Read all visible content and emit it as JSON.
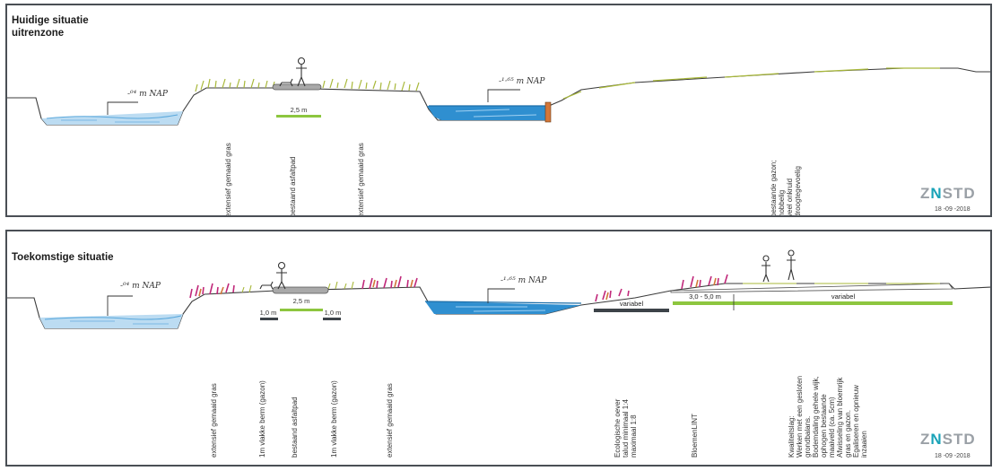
{
  "panels": {
    "current": {
      "title_line1": "Huidige situatie",
      "title_line2": "uitrenzone",
      "level_left": "-⁰⁴ m NAP",
      "level_right": "-¹·⁶⁵ m NAP",
      "path_width": "2,5 m",
      "labels": {
        "grass_left": "extensief gemaaid gras",
        "path": "bestaand asfaltpad",
        "grass_right": "extensief gemaaid gras",
        "lawn": [
          "bestaande gazon;",
          "hobbelig",
          "veel onkruid",
          "droogtegevoelig"
        ]
      },
      "logo_prefix": "Z",
      "logo_accent": "N",
      "logo_suffix": "STD",
      "date": "18 -09 -2018"
    },
    "future": {
      "title": "Toekomstige situatie",
      "level_left": "-⁰⁴ m NAP",
      "level_right": "-¹·⁶⁵ m NAP",
      "measures": {
        "berm_left": "1,0 m",
        "path": "2,5 m",
        "berm_right": "1,0 m",
        "shore": "variabel",
        "band": "3,0 - 5,0 m",
        "band_rest": "variabel"
      },
      "labels": {
        "grass_left": "extensief gemaaid gras",
        "berm_left": "1m vlakke berm (gazon)",
        "path": "bestaand asfaltpad",
        "berm_right": "1m vlakke berm (gazon)",
        "grass_right": "extensief gemaaid gras",
        "shore": [
          "Ecologische oever",
          "talud minimaal 1:4",
          "maximaal 1:8"
        ],
        "flower": "BloemenLINT",
        "quality": [
          "Kwaliteitslag:",
          "Werken met een gesloten",
          "grondbalans.",
          "Bodemdaling gehele wijk,",
          "ophogen bestaande",
          "maaiveld (ca. 5cm)",
          "Afwisseling van bloemrijk",
          "gras en gazon.",
          "Egaliseren en opnieuw",
          "inzaaien"
        ]
      },
      "logo_prefix": "Z",
      "logo_accent": "N",
      "logo_suffix": "STD",
      "date": "18 -09 -2018"
    }
  },
  "colors": {
    "water": "#2f8fd0",
    "water_light": "#bcdcf2",
    "grass": "#c8d06a",
    "measure_green": "#8dc63f",
    "measure_dark": "#3d4349",
    "path": "#a9a9a9",
    "flowers": "#c0287a",
    "timber": "#d2773a",
    "logo_accent": "#1aa3b8"
  }
}
